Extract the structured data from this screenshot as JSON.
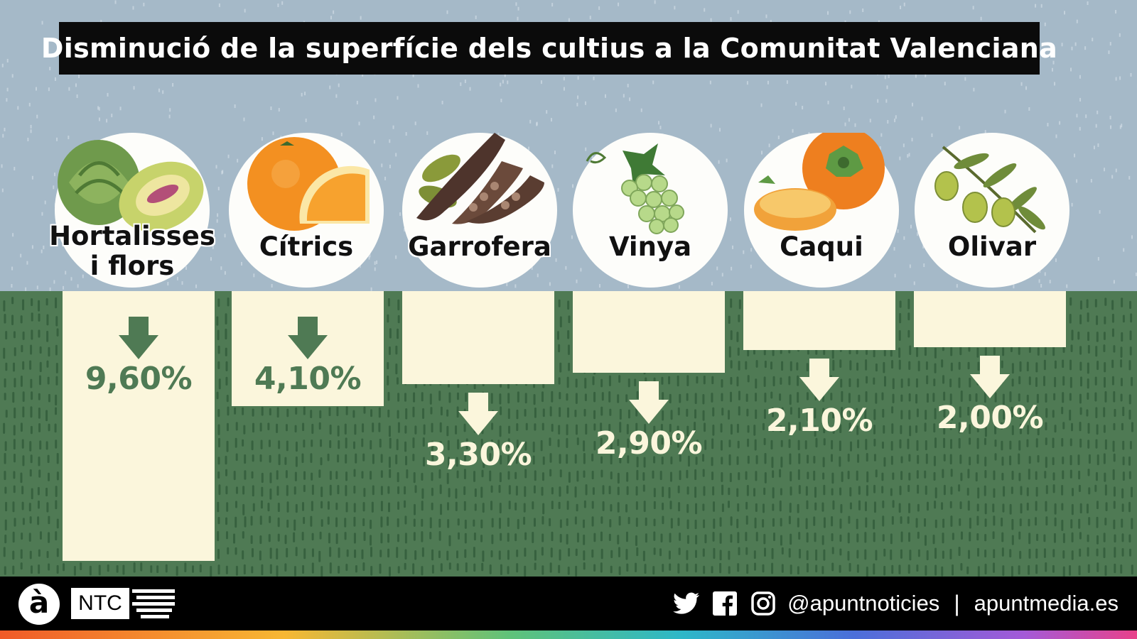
{
  "title": "Disminució de la superfície dels cultius a la Comunitat Valenciana",
  "chart_data": {
    "type": "bar",
    "orientation": "downward",
    "categories": [
      "Hortalisses i flors",
      "Cítrics",
      "Garrofera",
      "Vinya",
      "Caqui",
      "Olivar"
    ],
    "values": [
      9.6,
      4.1,
      3.3,
      2.9,
      2.1,
      2.0
    ],
    "value_labels": [
      "9,60%",
      "4,10%",
      "3,30%",
      "2,90%",
      "2,10%",
      "2,00%"
    ],
    "category_labels": [
      [
        "Hortalisses",
        "i flors"
      ],
      [
        "Cítrics"
      ],
      [
        "Garrofera"
      ],
      [
        "Vinya"
      ],
      [
        "Caqui"
      ],
      [
        "Olivar"
      ]
    ],
    "unit": "%",
    "ylim": [
      0,
      9.6
    ],
    "icons": [
      "artichoke-icon",
      "orange-icon",
      "carob-icon",
      "grapes-icon",
      "persimmon-icon",
      "olive-icon"
    ]
  },
  "colors": {
    "sky": "#a5b9c8",
    "ground": "#4f7a54",
    "bar": "#fbf6dc",
    "label_inside": "#4f7a54",
    "label_outside": "#fbf6dc"
  },
  "footer": {
    "handle": "@apuntnoticies",
    "separator": "|",
    "site": "apuntmedia.es",
    "brand_a": "à",
    "brand_ntc": "NTC",
    "social_icons": [
      "twitter-icon",
      "facebook-icon",
      "instagram-icon"
    ]
  }
}
